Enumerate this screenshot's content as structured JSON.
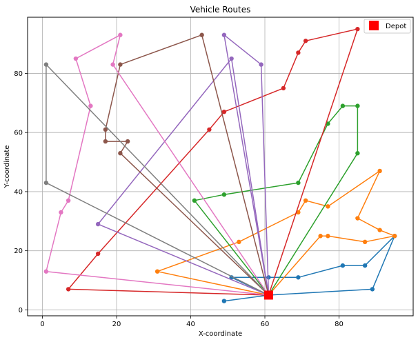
{
  "chart_data": {
    "type": "line",
    "title": "Vehicle Routes",
    "xlabel": "X-coordinate",
    "ylabel": "Y-coordinate",
    "xlim": [
      -4,
      100
    ],
    "ylim": [
      -2,
      99
    ],
    "xticks": [
      0,
      20,
      40,
      60,
      80
    ],
    "yticks": [
      0,
      20,
      40,
      60,
      80
    ],
    "grid": true,
    "legend_position": "top-right",
    "depot": {
      "label": "Depot",
      "x": 61,
      "y": 5,
      "color": "#ff0000"
    },
    "series": [
      {
        "color": "#1f77b4",
        "points": [
          [
            61,
            5
          ],
          [
            49,
            3
          ],
          [
            61,
            5
          ],
          [
            89,
            7
          ],
          [
            95,
            25
          ],
          [
            87,
            15
          ],
          [
            81,
            15
          ],
          [
            69,
            11
          ],
          [
            61,
            11
          ],
          [
            51,
            11
          ],
          [
            61,
            5
          ]
        ]
      },
      {
        "color": "#ff7f0e",
        "points": [
          [
            61,
            5
          ],
          [
            31,
            13
          ],
          [
            53,
            23
          ],
          [
            69,
            33
          ],
          [
            71,
            37
          ],
          [
            77,
            35
          ],
          [
            91,
            47
          ],
          [
            85,
            31
          ],
          [
            91,
            27
          ],
          [
            95,
            25
          ],
          [
            87,
            23
          ],
          [
            77,
            25
          ],
          [
            75,
            25
          ],
          [
            61,
            5
          ]
        ]
      },
      {
        "color": "#2ca02c",
        "points": [
          [
            61,
            5
          ],
          [
            41,
            37
          ],
          [
            49,
            39
          ],
          [
            69,
            43
          ],
          [
            77,
            63
          ],
          [
            81,
            69
          ],
          [
            85,
            69
          ],
          [
            85,
            53
          ],
          [
            61,
            5
          ]
        ]
      },
      {
        "color": "#d62728",
        "points": [
          [
            61,
            5
          ],
          [
            7,
            7
          ],
          [
            15,
            19
          ],
          [
            45,
            61
          ],
          [
            49,
            67
          ],
          [
            65,
            75
          ],
          [
            69,
            87
          ],
          [
            71,
            91
          ],
          [
            85,
            95
          ],
          [
            61,
            5
          ]
        ]
      },
      {
        "color": "#9467bd",
        "points": [
          [
            61,
            5
          ],
          [
            15,
            29
          ],
          [
            51,
            85
          ],
          [
            61,
            5
          ],
          [
            59,
            83
          ],
          [
            49,
            93
          ],
          [
            61,
            5
          ]
        ]
      },
      {
        "color": "#8c564b",
        "points": [
          [
            61,
            5
          ],
          [
            21,
            53
          ],
          [
            23,
            57
          ],
          [
            17,
            57
          ],
          [
            17,
            61
          ],
          [
            21,
            83
          ],
          [
            43,
            93
          ],
          [
            61,
            5
          ]
        ]
      },
      {
        "color": "#e377c2",
        "points": [
          [
            61,
            5
          ],
          [
            1,
            13
          ],
          [
            5,
            33
          ],
          [
            7,
            37
          ],
          [
            13,
            69
          ],
          [
            9,
            85
          ],
          [
            21,
            93
          ],
          [
            19,
            83
          ],
          [
            61,
            5
          ]
        ]
      },
      {
        "color": "#7f7f7f",
        "points": [
          [
            61,
            5
          ],
          [
            1,
            43
          ],
          [
            1,
            83
          ],
          [
            61,
            5
          ]
        ]
      }
    ]
  }
}
